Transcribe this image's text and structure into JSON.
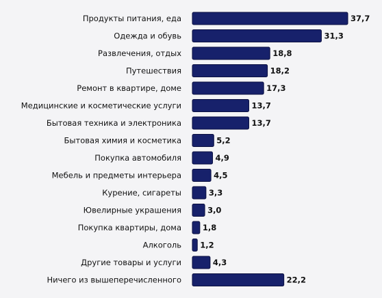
{
  "chart_data": {
    "type": "bar",
    "orientation": "horizontal",
    "categories": [
      "Продукты питания, еда",
      "Одежда и обувь",
      "Развлечения, отдых",
      "Путешествия",
      "Ремонт в квартире, доме",
      "Медицинские и косметические услуги",
      "Бытовая техника и электроника",
      "Бытовая химия и косметика",
      "Покупка автомобиля",
      "Мебель и предметы интерьера",
      "Курение, сигареты",
      "Ювелирные украшения",
      "Покупка квартиры, дома",
      "Алкоголь",
      "Другие товары и услуги",
      "Ничего из вышеперечисленного"
    ],
    "values": [
      37.7,
      31.3,
      18.8,
      18.2,
      17.3,
      13.7,
      13.7,
      5.2,
      4.9,
      4.5,
      3.3,
      3.0,
      1.8,
      1.2,
      4.3,
      22.2
    ],
    "value_labels": [
      "37,7",
      "31,3",
      "18,8",
      "18,2",
      "17,3",
      "13,7",
      "13,7",
      "5,2",
      "4,9",
      "4,5",
      "3,3",
      "3,0",
      "1,8",
      "1,2",
      "4,3",
      "22,2"
    ],
    "xlim": [
      0,
      37.7
    ],
    "grid": false,
    "legend": "none",
    "colors": {
      "bar": "#17216b",
      "bar_edge": "#0b1040",
      "background": "#f4f4f6",
      "text": "#111111"
    }
  }
}
